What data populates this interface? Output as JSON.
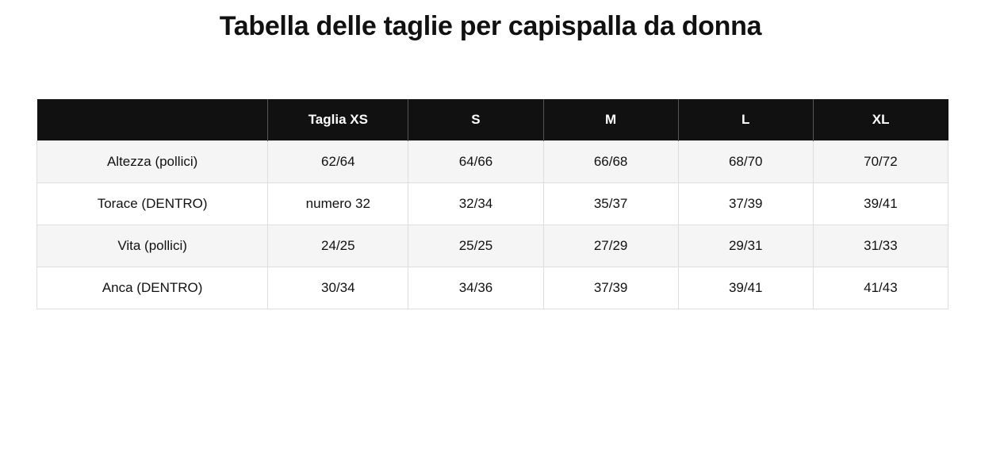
{
  "header": {
    "title": "Tabella delle taglie per capispalla da donna"
  },
  "table": {
    "columns": [
      "",
      "Taglia XS",
      "S",
      "M",
      "L",
      "XL"
    ],
    "rows": [
      [
        "Altezza (pollici)",
        "62/64",
        "64/66",
        "66/68",
        "68/70",
        "70/72"
      ],
      [
        "Torace (DENTRO)",
        "numero 32",
        "32/34",
        "35/37",
        "37/39",
        "39/41"
      ],
      [
        "Vita (pollici)",
        "24/25",
        "25/25",
        "27/29",
        "29/31",
        "31/33"
      ],
      [
        "Anca (DENTRO)",
        "30/34",
        "34/36",
        "37/39",
        "39/41",
        "41/43"
      ]
    ]
  }
}
